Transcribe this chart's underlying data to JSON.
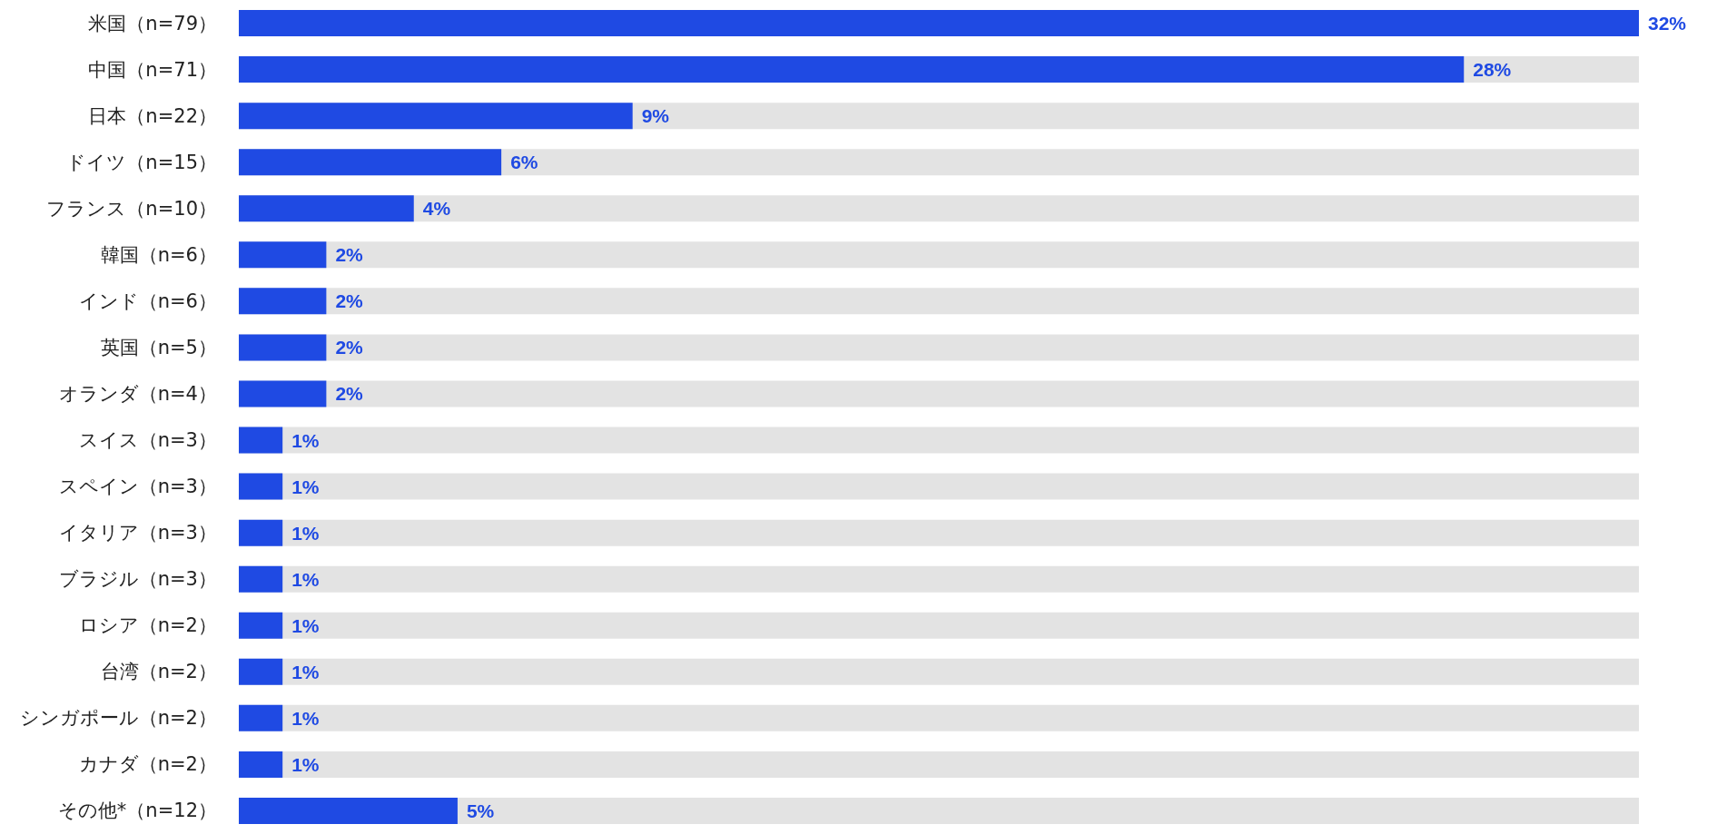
{
  "chart_data": {
    "type": "bar",
    "orientation": "horizontal",
    "categories": [
      "米国（n=79）",
      "中国（n=71）",
      "日本（n=22）",
      "ドイツ（n=15）",
      "フランス（n=10）",
      "韓国（n=6）",
      "インド（n=6）",
      "英国（n=5）",
      "オランダ（n=4）",
      "スイス（n=3）",
      "スペイン（n=3）",
      "イタリア（n=3）",
      "ブラジル（n=3）",
      "ロシア（n=2）",
      "台湾（n=2）",
      "シンガポール（n=2）",
      "カナダ（n=2）",
      "その他*（n=12）"
    ],
    "values": [
      32,
      28,
      9,
      6,
      4,
      2,
      2,
      2,
      2,
      1,
      1,
      1,
      1,
      1,
      1,
      1,
      1,
      5
    ],
    "value_labels": [
      "32%",
      "28%",
      "9%",
      "6%",
      "4%",
      "2%",
      "2%",
      "2%",
      "2%",
      "1%",
      "1%",
      "1%",
      "1%",
      "1%",
      "1%",
      "1%",
      "1%",
      "5%"
    ],
    "color": "#1f4ae3",
    "grid": false
  }
}
